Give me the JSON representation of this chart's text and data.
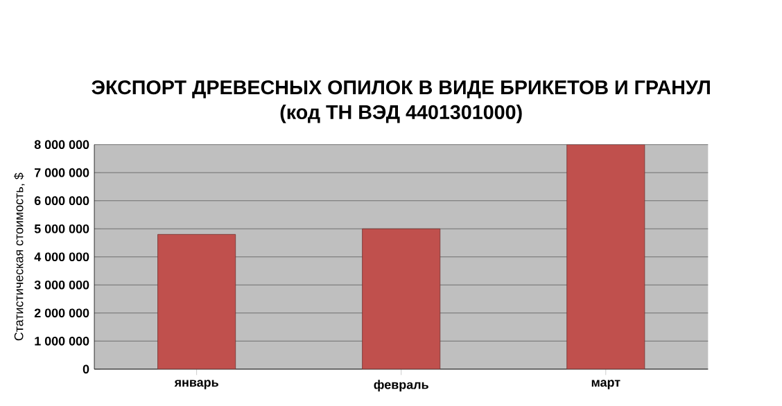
{
  "chart_data": {
    "type": "bar",
    "title": "ЭКСПОРТ ДРЕВЕСНЫХ ОПИЛОК В ВИДЕ БРИКЕТОВ И  ГРАНУЛ",
    "subtitle": "(код ТН ВЭД 4401301000)",
    "ylabel": "Статистическая стоимость, $",
    "categories": [
      "январь",
      "февраль",
      "март"
    ],
    "values": [
      4800000,
      5000000,
      8000000
    ],
    "color": "#c0504d",
    "ylim": [
      0,
      8000000
    ],
    "yticks": [
      {
        "value": 0,
        "label": "0"
      },
      {
        "value": 1000000,
        "label": "1 000 000"
      },
      {
        "value": 2000000,
        "label": "2 000 000"
      },
      {
        "value": 3000000,
        "label": "3 000 000"
      },
      {
        "value": 4000000,
        "label": "4 000 000"
      },
      {
        "value": 5000000,
        "label": "5 000 000"
      },
      {
        "value": 6000000,
        "label": "6 000 000"
      },
      {
        "value": 7000000,
        "label": "7 000 000"
      },
      {
        "value": 8000000,
        "label": "8 000 000"
      }
    ],
    "grid": "y"
  }
}
